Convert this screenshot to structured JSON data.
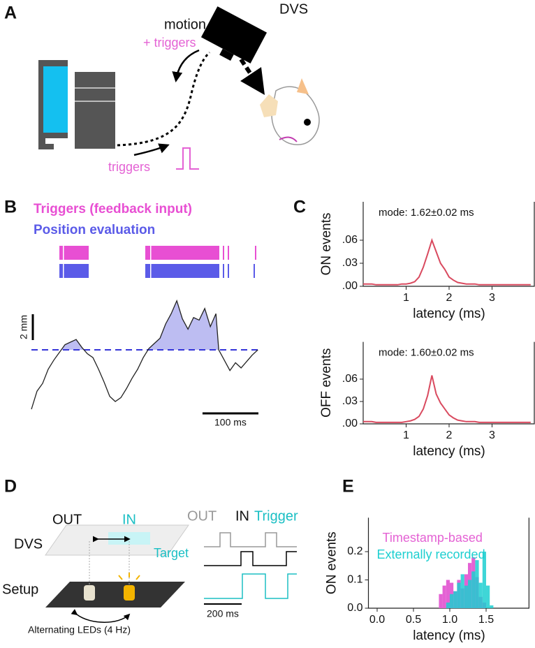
{
  "panels": {
    "labels": [
      "A",
      "B",
      "C",
      "D",
      "E"
    ]
  },
  "panel_a": {
    "camera": "DVS",
    "motion": "motion",
    "motion_triggers": "+ triggers",
    "triggers": "triggers"
  },
  "panel_d": {
    "out": "OUT",
    "in": "IN",
    "dvs": "DVS",
    "target": "Target",
    "setup": "Setup",
    "leds": "Alternating LEDs (4 Hz)",
    "timing_out": "OUT",
    "timing_in": "IN",
    "timing_trigger": "Trigger",
    "scalebar": "200 ms"
  },
  "chart_data": [
    {
      "type": "line",
      "raster_labels": [
        {
          "text": "Triggers (feedback input)",
          "color": "#e84fd3"
        },
        {
          "text": "Position evaluation",
          "color": "#5b5be8"
        }
      ],
      "x": [
        0,
        10,
        20,
        30,
        40,
        50,
        60,
        70,
        80,
        90,
        100,
        110,
        120,
        130,
        140,
        150,
        160,
        170,
        180,
        190,
        200,
        210,
        220,
        230,
        240,
        250,
        260,
        270,
        280,
        290,
        300,
        310,
        320,
        330,
        335,
        345,
        355,
        365,
        375,
        385,
        395,
        405
      ],
      "values": [
        -4.6,
        -3.2,
        -2.6,
        -1.5,
        -0.8,
        -0.2,
        0.4,
        0.6,
        0.8,
        0.2,
        -0.3,
        -0.6,
        -1.5,
        -2.5,
        -3.6,
        -4.0,
        -3.7,
        -3.0,
        -2.2,
        -1.5,
        -0.6,
        0.1,
        0.5,
        0.9,
        2.0,
        2.8,
        3.8,
        2.4,
        1.6,
        2.5,
        2.3,
        3.2,
        1.8,
        2.8,
        0.0,
        -0.8,
        -1.6,
        -1.0,
        -1.4,
        -0.9,
        -0.4,
        0.0
      ],
      "color": "#222222",
      "fill": "#bdbdf2",
      "threshold": 0,
      "threshold_color": "#3535d8",
      "xlim": [
        0,
        406
      ],
      "ylim": [
        -5,
        4.5
      ],
      "scalebars": {
        "y": {
          "value": 2,
          "label": "2 mm"
        },
        "x": {
          "value": 100,
          "label": "100 ms"
        }
      }
    },
    {
      "type": "line",
      "title": "mode: 1.62±0.02 ms",
      "xlabel": "latency (ms)",
      "ylabel": "ON events",
      "color": "#d94a5f",
      "x": [
        0,
        0.1,
        0.2,
        0.3,
        0.4,
        0.5,
        0.6,
        0.7,
        0.8,
        0.9,
        1.0,
        1.1,
        1.2,
        1.3,
        1.4,
        1.5,
        1.6,
        1.7,
        1.8,
        1.9,
        2.0,
        2.1,
        2.2,
        2.3,
        2.4,
        2.5,
        2.6,
        2.7,
        2.8,
        2.9,
        3.0,
        3.1,
        3.2,
        3.3,
        3.4,
        3.5,
        3.6,
        3.7,
        3.8,
        3.9
      ],
      "values": [
        0.003,
        0.003,
        0.003,
        0.002,
        0.002,
        0.002,
        0.002,
        0.002,
        0.002,
        0.003,
        0.003,
        0.004,
        0.006,
        0.012,
        0.025,
        0.042,
        0.06,
        0.045,
        0.03,
        0.022,
        0.012,
        0.008,
        0.005,
        0.004,
        0.003,
        0.003,
        0.003,
        0.002,
        0.002,
        0.002,
        0.002,
        0.002,
        0.002,
        0.002,
        0.002,
        0.002,
        0.002,
        0.002,
        0.002,
        0.002
      ],
      "xlim": [
        0,
        4
      ],
      "ylim": [
        0,
        0.11
      ],
      "xticks": [
        1,
        2,
        3
      ],
      "yticks": [
        {
          "value": 0,
          "label": ".00"
        },
        {
          "value": 0.03,
          "label": ".03"
        },
        {
          "value": 0.06,
          "label": ".06"
        }
      ]
    },
    {
      "type": "line",
      "title": "mode: 1.60±0.02 ms",
      "xlabel": "latency (ms)",
      "ylabel": "OFF events",
      "color": "#d94a5f",
      "x": [
        0,
        0.1,
        0.2,
        0.3,
        0.4,
        0.5,
        0.6,
        0.7,
        0.8,
        0.9,
        1.0,
        1.1,
        1.2,
        1.3,
        1.4,
        1.5,
        1.6,
        1.7,
        1.8,
        1.9,
        2.0,
        2.1,
        2.2,
        2.3,
        2.4,
        2.5,
        2.6,
        2.7,
        2.8,
        2.9,
        3.0,
        3.1,
        3.2,
        3.3,
        3.4,
        3.5,
        3.6,
        3.7,
        3.8,
        3.9
      ],
      "values": [
        0.003,
        0.003,
        0.003,
        0.002,
        0.002,
        0.002,
        0.002,
        0.002,
        0.002,
        0.002,
        0.003,
        0.004,
        0.006,
        0.01,
        0.02,
        0.038,
        0.065,
        0.04,
        0.028,
        0.02,
        0.012,
        0.008,
        0.005,
        0.004,
        0.003,
        0.003,
        0.003,
        0.002,
        0.002,
        0.002,
        0.002,
        0.002,
        0.002,
        0.002,
        0.002,
        0.002,
        0.002,
        0.002,
        0.002,
        0.002
      ],
      "xlim": [
        0,
        4
      ],
      "ylim": [
        0,
        0.11
      ],
      "xticks": [
        1,
        2,
        3
      ],
      "yticks": [
        {
          "value": 0,
          "label": ".00"
        },
        {
          "value": 0.03,
          "label": ".03"
        },
        {
          "value": 0.06,
          "label": ".06"
        }
      ]
    },
    {
      "type": "histogram",
      "xlabel": "latency (ms)",
      "ylabel": "ON events",
      "legend": "upper left",
      "bins": [
        0.85,
        0.9,
        0.95,
        1.0,
        1.05,
        1.1,
        1.15,
        1.2,
        1.25,
        1.3,
        1.35,
        1.4,
        1.45,
        1.5,
        1.55,
        1.6
      ],
      "series": [
        {
          "name": "Timestamp-based",
          "color": "#e462d4",
          "values": [
            0.05,
            0.08,
            0.1,
            0.09,
            0.06,
            0.1,
            0.07,
            0.12,
            0.16,
            0.18,
            0.11,
            0.04,
            0.02,
            0,
            0
          ]
        },
        {
          "name": "Externally recorded",
          "color": "#1dcfd0",
          "values": [
            0,
            0,
            0.02,
            0.05,
            0.06,
            0.09,
            0.12,
            0.08,
            0.1,
            0.13,
            0.17,
            0.09,
            0.2,
            0.08,
            0.01
          ]
        }
      ],
      "xlim": [
        -0.12,
        2.1
      ],
      "ylim": [
        0,
        0.32
      ],
      "xticks": [
        {
          "value": 0,
          "label": "0.0"
        },
        0.5,
        {
          "value": 1,
          "label": "1.0"
        },
        1.5
      ],
      "yticks": [
        {
          "value": 0,
          "label": "0.0"
        },
        0.1,
        0.2
      ]
    }
  ]
}
